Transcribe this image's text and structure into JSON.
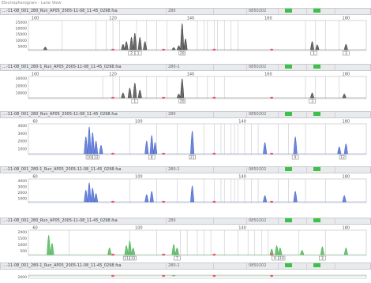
{
  "window": {
    "title": "Electropherogram - Lane View"
  },
  "lanes": [
    {
      "file": "…-11-08_001_280_Run_AP05_2005-11-08_11-45_0298.fsa",
      "sample": "280",
      "panel": "",
      "date": "0850202",
      "dye_color": "#3a3a3a",
      "header_style": "title",
      "x_ticks": [
        "100",
        "120",
        "140",
        "160",
        "180"
      ],
      "y_ticks": [
        "25000",
        "20000",
        "15000",
        "10000",
        "5000"
      ],
      "peaks": [
        {
          "x": 0.05,
          "h": 0.1
        },
        {
          "x": 0.28,
          "h": 0.2
        },
        {
          "x": 0.29,
          "h": 0.3
        },
        {
          "x": 0.305,
          "h": 0.45
        },
        {
          "x": 0.315,
          "h": 0.6
        },
        {
          "x": 0.33,
          "h": 0.45
        },
        {
          "x": 0.345,
          "h": 0.3
        },
        {
          "x": 0.43,
          "h": 0.08
        },
        {
          "x": 0.445,
          "h": 0.15
        },
        {
          "x": 0.455,
          "h": 0.95
        },
        {
          "x": 0.465,
          "h": 0.4
        },
        {
          "x": 0.84,
          "h": 0.3
        },
        {
          "x": 0.855,
          "h": 0.18
        },
        {
          "x": 0.94,
          "h": 0.2
        }
      ],
      "bins": [
        0.1,
        0.2,
        0.23,
        0.25,
        0.27,
        0.32,
        0.35,
        0.38,
        0.41,
        0.5,
        0.52,
        0.53,
        0.55,
        0.56,
        0.58,
        0.6,
        0.62,
        0.82,
        0.85,
        0.88,
        0.92
      ],
      "allele_labels": [
        {
          "x": 0.305,
          "text": "2"
        },
        {
          "x": 0.325,
          "text": "1"
        },
        {
          "x": 0.455,
          "text": "20"
        },
        {
          "x": 0.845,
          "text": "1"
        },
        {
          "x": 0.94,
          "text": "3"
        }
      ]
    },
    {
      "file": "…-11-08_001_280-1_Run_AP05_2005-11-08_11-45_0298.fsa",
      "sample": "280-1",
      "panel": "",
      "date": "0850202",
      "dye_color": "#3a3a3a",
      "header_style": "plain",
      "x_ticks": [
        "100",
        "120",
        "140",
        "160",
        "180"
      ],
      "y_ticks": [
        "30000",
        "20000",
        "10000"
      ],
      "peaks": [
        {
          "x": 0.28,
          "h": 0.25
        },
        {
          "x": 0.3,
          "h": 0.5
        },
        {
          "x": 0.315,
          "h": 0.75
        },
        {
          "x": 0.33,
          "h": 0.4
        },
        {
          "x": 0.455,
          "h": 0.97
        },
        {
          "x": 0.445,
          "h": 0.2
        },
        {
          "x": 0.84,
          "h": 0.25
        },
        {
          "x": 0.935,
          "h": 0.2
        }
      ],
      "bins": [
        0.22,
        0.25,
        0.27,
        0.35,
        0.38,
        0.41,
        0.5,
        0.53,
        0.55,
        0.58,
        0.82,
        0.85,
        0.88,
        0.92
      ],
      "allele_labels": [
        {
          "x": 0.315,
          "text": "1"
        },
        {
          "x": 0.455,
          "text": "20"
        },
        {
          "x": 0.84,
          "text": "3"
        }
      ]
    },
    {
      "file": "…-11-08_001_280_Run_AP05_2005-11-08_11-45_0298.fsa",
      "sample": "280",
      "panel": "",
      "date": "0850202",
      "dye_color": "#3c5ecc",
      "header_style": "title",
      "x_ticks": [
        "60",
        "100",
        "140",
        "180"
      ],
      "y_ticks": [
        "4000",
        "3000",
        "2000",
        "1000"
      ],
      "peaks": [
        {
          "x": 0.17,
          "h": 0.6
        },
        {
          "x": 0.18,
          "h": 0.95
        },
        {
          "x": 0.19,
          "h": 0.75
        },
        {
          "x": 0.2,
          "h": 0.45
        },
        {
          "x": 0.215,
          "h": 0.3
        },
        {
          "x": 0.35,
          "h": 0.45
        },
        {
          "x": 0.365,
          "h": 0.65
        },
        {
          "x": 0.375,
          "h": 0.4
        },
        {
          "x": 0.485,
          "h": 0.8
        },
        {
          "x": 0.7,
          "h": 0.4
        },
        {
          "x": 0.79,
          "h": 0.6
        },
        {
          "x": 0.92,
          "h": 0.25
        },
        {
          "x": 0.94,
          "h": 0.35
        }
      ],
      "bins": [
        0.3,
        0.38,
        0.44,
        0.52,
        0.55,
        0.57,
        0.58,
        0.6,
        0.61,
        0.62,
        0.64,
        0.66,
        0.68,
        0.74,
        0.77,
        0.82,
        0.88
      ],
      "allele_labels": [
        {
          "x": 0.18,
          "text": "10"
        },
        {
          "x": 0.2,
          "text": "12"
        },
        {
          "x": 0.365,
          "text": "8"
        },
        {
          "x": 0.485,
          "text": "21"
        },
        {
          "x": 0.79,
          "text": "9"
        },
        {
          "x": 0.93,
          "text": "12"
        }
      ]
    },
    {
      "file": "…-11-08_001_280-1_Run_AP05_2005-11-08_11-45_0298.fsa",
      "sample": "280-1",
      "panel": "",
      "date": "0850202",
      "dye_color": "#3c5ecc",
      "header_style": "plain",
      "x_ticks": [
        "60",
        "100",
        "140",
        "180"
      ],
      "y_ticks": [
        "4000",
        "3000",
        "2000",
        "1000"
      ],
      "peaks": [
        {
          "x": 0.17,
          "h": 0.55
        },
        {
          "x": 0.18,
          "h": 0.9
        },
        {
          "x": 0.19,
          "h": 0.65
        },
        {
          "x": 0.2,
          "h": 0.4
        },
        {
          "x": 0.35,
          "h": 0.35
        },
        {
          "x": 0.365,
          "h": 0.5
        },
        {
          "x": 0.485,
          "h": 0.75
        },
        {
          "x": 0.7,
          "h": 0.3
        },
        {
          "x": 0.79,
          "h": 0.5
        },
        {
          "x": 0.935,
          "h": 0.3
        }
      ],
      "bins": [
        0.3,
        0.38,
        0.44,
        0.52,
        0.55,
        0.57,
        0.58,
        0.6,
        0.61,
        0.62,
        0.64,
        0.66,
        0.68,
        0.74,
        0.77,
        0.82,
        0.88
      ],
      "allele_labels": []
    },
    {
      "file": "…-11-08_001_280_Run_AP05_2005-11-08_11-45_0298.fsa",
      "sample": "280",
      "panel": "",
      "date": "0850202",
      "dye_color": "#3fae4a",
      "header_style": "title",
      "x_ticks": [
        "60",
        "100",
        "140",
        "180"
      ],
      "y_ticks": [
        "2000",
        "1500",
        "1000",
        "500"
      ],
      "peaks": [
        {
          "x": 0.06,
          "h": 0.85
        },
        {
          "x": 0.07,
          "h": 0.5
        },
        {
          "x": 0.24,
          "h": 0.3
        },
        {
          "x": 0.29,
          "h": 0.4
        },
        {
          "x": 0.3,
          "h": 0.6
        },
        {
          "x": 0.31,
          "h": 0.3
        },
        {
          "x": 0.43,
          "h": 0.45
        },
        {
          "x": 0.44,
          "h": 0.3
        },
        {
          "x": 0.72,
          "h": 0.25
        },
        {
          "x": 0.735,
          "h": 0.4
        },
        {
          "x": 0.745,
          "h": 0.3
        },
        {
          "x": 0.81,
          "h": 0.2
        },
        {
          "x": 0.87,
          "h": 0.35
        },
        {
          "x": 0.94,
          "h": 0.3
        }
      ],
      "bins": [
        0.12,
        0.3,
        0.38,
        0.45,
        0.47,
        0.5,
        0.52,
        0.54,
        0.58,
        0.62,
        0.65,
        0.67,
        0.69,
        0.71,
        0.8,
        0.88
      ],
      "allele_labels": [
        {
          "x": 0.29,
          "text": "11"
        },
        {
          "x": 0.31,
          "text": "12"
        },
        {
          "x": 0.44,
          "text": "7"
        },
        {
          "x": 0.73,
          "text": "9"
        },
        {
          "x": 0.75,
          "text": "10"
        },
        {
          "x": 0.87,
          "text": "3"
        }
      ]
    },
    {
      "file": "…-11-08_001_280-1_Run_AP05_2005-11-08_11-45_0298.fsa",
      "sample": "280-1",
      "panel": "",
      "date": "0850202",
      "dye_color": "#3fae4a",
      "header_style": "plain",
      "x_ticks": [],
      "y_ticks": [
        "2000"
      ],
      "peaks": [
        {
          "x": 0.43,
          "h": 0.6
        }
      ],
      "bins": [],
      "allele_labels": []
    }
  ],
  "icons": {
    "ok": "green-status-icon"
  }
}
